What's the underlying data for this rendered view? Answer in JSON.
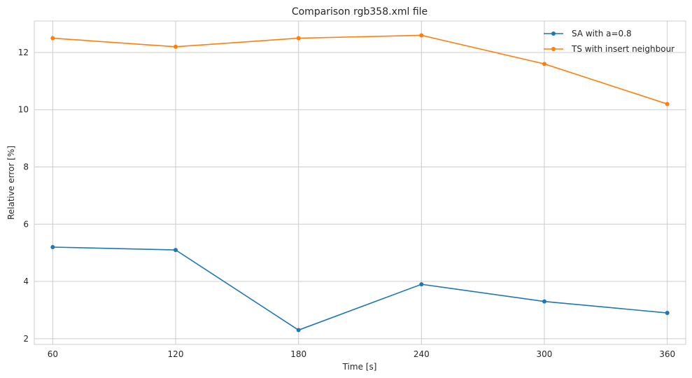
{
  "chart_data": {
    "type": "line",
    "title": "Comparison rgb358.xml file",
    "xlabel": "Time [s]",
    "ylabel": "Relative error [%]",
    "x": [
      60,
      120,
      180,
      240,
      300,
      360
    ],
    "xticks": [
      "60",
      "120",
      "180",
      "240",
      "300",
      "360"
    ],
    "yticks": [
      "2",
      "4",
      "6",
      "8",
      "10",
      "12"
    ],
    "ylim": [
      1.8,
      13.1
    ],
    "grid": true,
    "legend_position": "top-right",
    "series": [
      {
        "name": "SA with a=0.8",
        "color": "#1f77b4",
        "values": [
          5.2,
          5.1,
          2.3,
          3.9,
          3.3,
          2.9
        ]
      },
      {
        "name": "TS with insert neighbour",
        "color": "#ff7f0e",
        "values": [
          12.5,
          12.2,
          12.5,
          12.6,
          11.6,
          10.2
        ]
      }
    ]
  }
}
